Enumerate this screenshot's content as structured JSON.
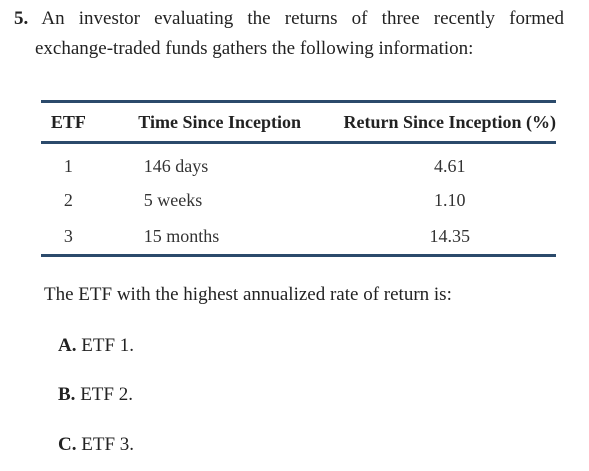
{
  "question": {
    "number": "5.",
    "line1": "An investor evaluating the returns of three recently formed",
    "line2": "exchange-traded funds gathers the following information:"
  },
  "table": {
    "headers": [
      "ETF",
      "Time Since Inception",
      "Return Since Inception (%)"
    ],
    "rows": [
      {
        "etf": "1",
        "time": "146 days",
        "ret": "4.61"
      },
      {
        "etf": "2",
        "time": "5 weeks",
        "ret": "1.10"
      },
      {
        "etf": "3",
        "time": "15 months",
        "ret": "14.35"
      }
    ],
    "rule_color": "#2b4a6b"
  },
  "prompt": "The ETF with the highest annualized rate of return is:",
  "choices": [
    {
      "letter": "A.",
      "text": "ETF 1."
    },
    {
      "letter": "B.",
      "text": "ETF 2."
    },
    {
      "letter": "C.",
      "text": "ETF 3."
    }
  ]
}
